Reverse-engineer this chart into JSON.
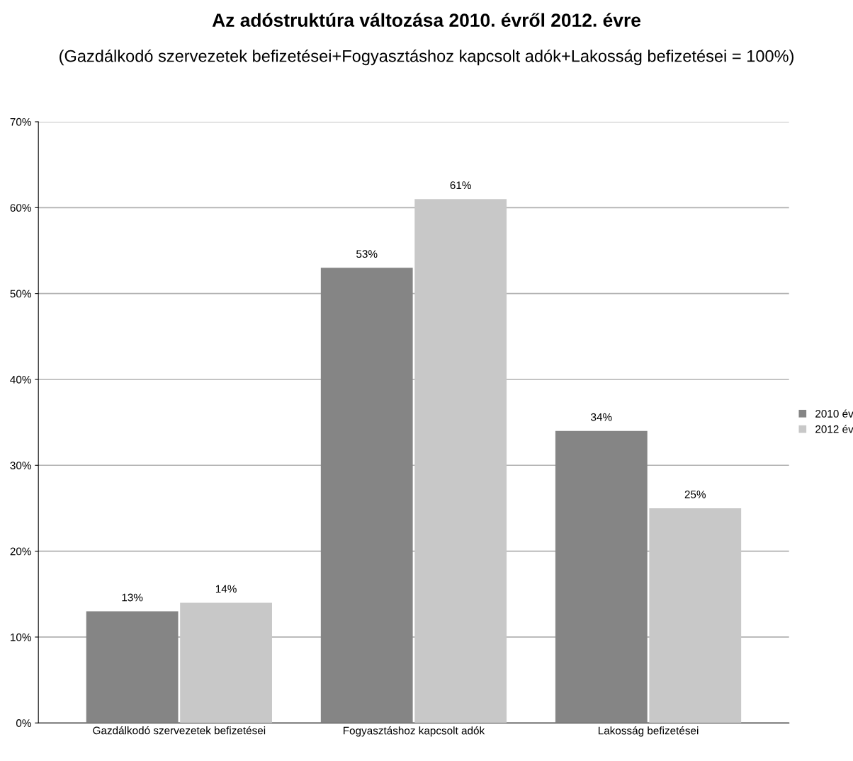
{
  "chart_data": {
    "type": "bar",
    "title": "Az adóstruktúra változása 2010. évről 2012. évre",
    "subtitle": "(Gazdálkodó szervezetek befizetései+Fogyasztáshoz kapcsolt adók+Lakosság befizetései = 100%)",
    "categories": [
      "Gazdálkodó szervezetek befizetései",
      "Fogyasztáshoz kapcsolt adók",
      "Lakosság befizetései"
    ],
    "series": [
      {
        "name": "2010 év",
        "color": "#858585",
        "values": [
          13,
          53,
          34
        ],
        "value_labels": [
          "13%",
          "53%",
          "34%"
        ]
      },
      {
        "name": "2012 év",
        "color": "#c8c8c8",
        "values": [
          14,
          61,
          25
        ],
        "value_labels": [
          "14%",
          "61%",
          "25%"
        ]
      }
    ],
    "ylim": [
      0,
      70
    ],
    "yticks": [
      {
        "value": 0,
        "label": "0%"
      },
      {
        "value": 10,
        "label": "10%"
      },
      {
        "value": 20,
        "label": "20%"
      },
      {
        "value": 30,
        "label": "30%"
      },
      {
        "value": 40,
        "label": "40%"
      },
      {
        "value": 50,
        "label": "50%"
      },
      {
        "value": 60,
        "label": "60%"
      },
      {
        "value": 70,
        "label": "70%"
      }
    ],
    "grid": "y",
    "legend": "right"
  }
}
